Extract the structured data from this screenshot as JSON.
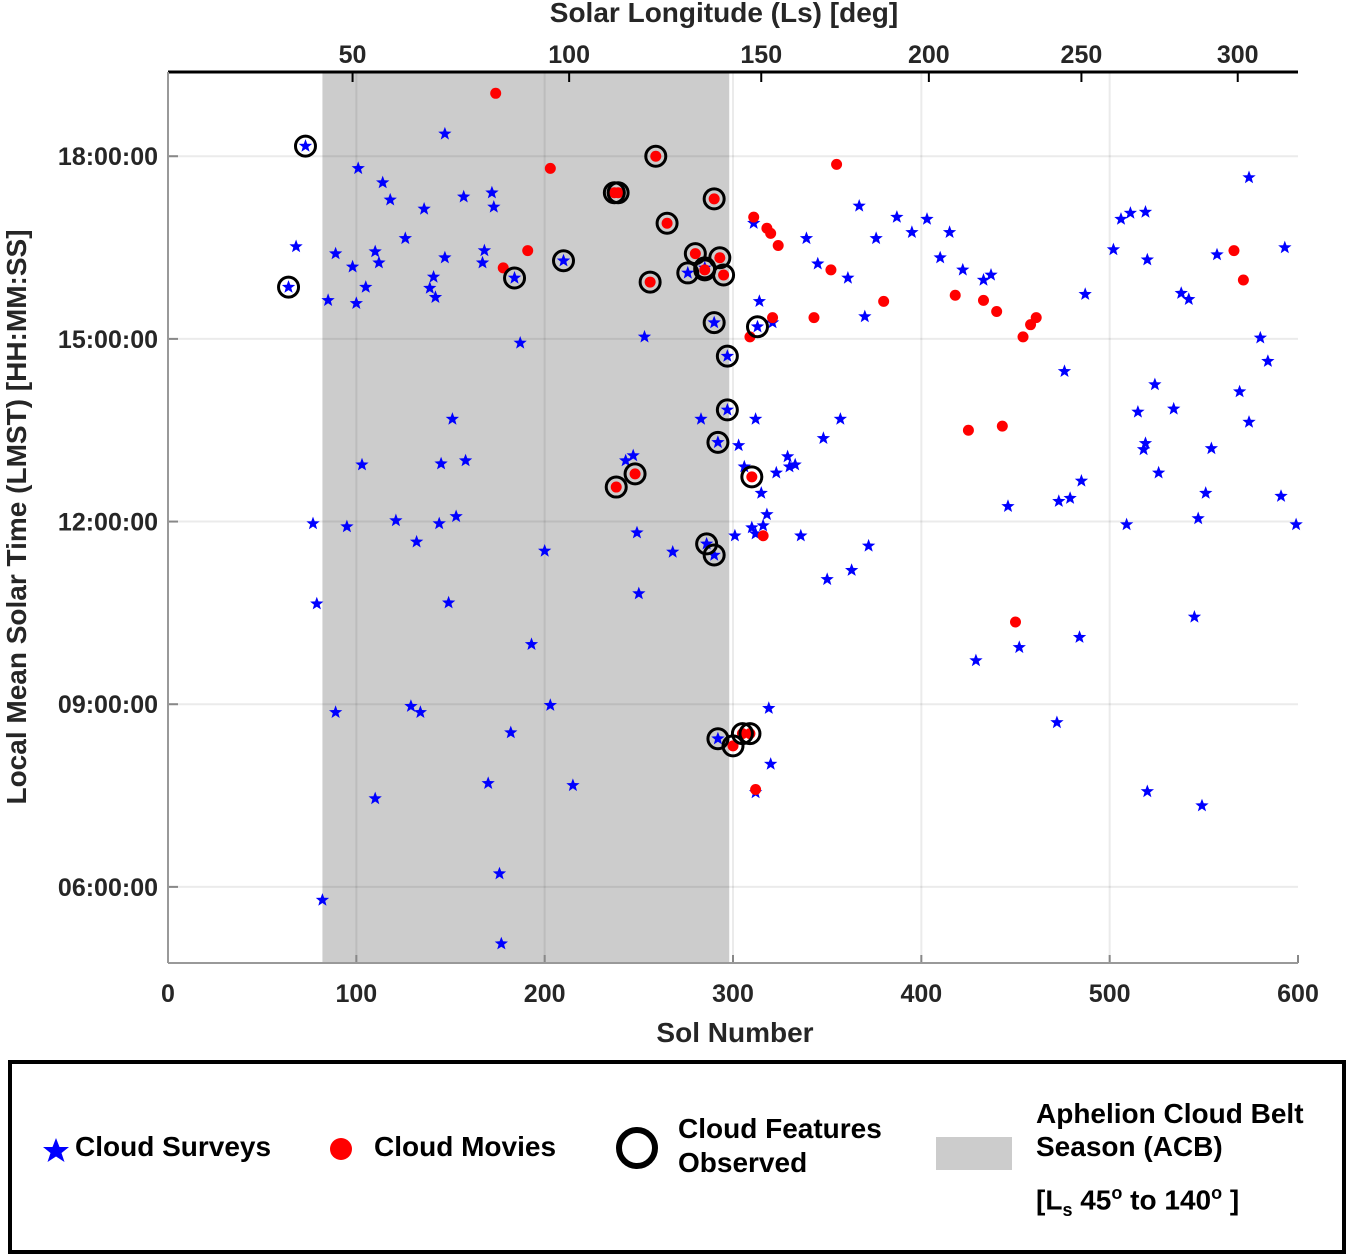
{
  "chart_data": {
    "type": "scatter",
    "xlabel": "Sol Number",
    "ylabel": "Local Mean Solar Time (LMST) [HH:MM:SS]",
    "top_xlabel": "Solar Longitude (Ls) [deg]",
    "xlim": [
      0,
      600
    ],
    "ylim": [
      "04:45",
      "19:23"
    ],
    "x_ticks": [
      "0",
      "100",
      "200",
      "300",
      "400",
      "500",
      "600"
    ],
    "y_ticks": [
      "06:00:00",
      "09:00:00",
      "12:00:00",
      "15:00:00",
      "18:00:00"
    ],
    "top_ticks": [
      {
        "label": "50",
        "sol": 98
      },
      {
        "label": "100",
        "sol": 213
      },
      {
        "label": "150",
        "sol": 315
      },
      {
        "label": "200",
        "sol": 404
      },
      {
        "label": "250",
        "sol": 485
      },
      {
        "label": "300",
        "sol": 568
      }
    ],
    "grid": true,
    "shaded_region": {
      "name": "Aphelion Cloud Belt Season (ACB)",
      "sol_range": [
        82,
        298
      ],
      "color": "#cccccc"
    },
    "colors": {
      "surveys": "#0000ff",
      "movies": "#ff0000",
      "features": "#000000"
    },
    "point_format": [
      "sol",
      "lmst",
      "cloud_feature_observed"
    ],
    "series": [
      {
        "name": "Cloud Surveys",
        "marker": "star",
        "points": [
          [
            73,
            "18:10",
            1
          ],
          [
            64,
            "15:51",
            1
          ],
          [
            68,
            "16:31",
            0
          ],
          [
            77,
            "11:58",
            0
          ],
          [
            79,
            "10:39",
            0
          ],
          [
            82,
            "05:47",
            0
          ],
          [
            85,
            "15:38",
            0
          ],
          [
            89,
            "16:24",
            0
          ],
          [
            89,
            "08:52",
            0
          ],
          [
            95,
            "11:55",
            0
          ],
          [
            98,
            "16:11",
            0
          ],
          [
            100,
            "15:35",
            0
          ],
          [
            101,
            "17:48",
            0
          ],
          [
            103,
            "12:56",
            0
          ],
          [
            105,
            "15:51",
            0
          ],
          [
            110,
            "07:27",
            0
          ],
          [
            110,
            "16:26",
            0
          ],
          [
            112,
            "16:15",
            0
          ],
          [
            114,
            "17:34",
            0
          ],
          [
            118,
            "17:17",
            0
          ],
          [
            121,
            "12:01",
            0
          ],
          [
            126,
            "16:39",
            0
          ],
          [
            129,
            "08:58",
            0
          ],
          [
            132,
            "11:40",
            0
          ],
          [
            134,
            "08:52",
            0
          ],
          [
            136,
            "17:08",
            0
          ],
          [
            139,
            "15:50",
            0
          ],
          [
            141,
            "16:01",
            0
          ],
          [
            142,
            "15:41",
            0
          ],
          [
            144,
            "11:58",
            0
          ],
          [
            145,
            "12:57",
            0
          ],
          [
            147,
            "16:20",
            0
          ],
          [
            147,
            "18:22",
            0
          ],
          [
            149,
            "10:40",
            0
          ],
          [
            151,
            "13:41",
            0
          ],
          [
            153,
            "12:05",
            0
          ],
          [
            157,
            "17:20",
            0
          ],
          [
            158,
            "13:00",
            0
          ],
          [
            168,
            "16:27",
            0
          ],
          [
            167,
            "16:15",
            0
          ],
          [
            170,
            "07:42",
            0
          ],
          [
            172,
            "17:24",
            0
          ],
          [
            173,
            "17:10",
            0
          ],
          [
            176,
            "06:13",
            0
          ],
          [
            177,
            "05:04",
            0
          ],
          [
            182,
            "08:32",
            0
          ],
          [
            184,
            "16:00",
            1
          ],
          [
            187,
            "14:56",
            0
          ],
          [
            193,
            "09:59",
            0
          ],
          [
            200,
            "11:31",
            0
          ],
          [
            203,
            "08:59",
            0
          ],
          [
            210,
            "16:17",
            1
          ],
          [
            215,
            "07:40",
            0
          ],
          [
            243,
            "13:00",
            0
          ],
          [
            247,
            "13:05",
            0
          ],
          [
            249,
            "11:49",
            0
          ],
          [
            250,
            "10:49",
            0
          ],
          [
            253,
            "15:02",
            0
          ],
          [
            268,
            "11:30",
            0
          ],
          [
            276,
            "16:05",
            1
          ],
          [
            283,
            "13:41",
            0
          ],
          [
            285,
            "16:10",
            1
          ],
          [
            286,
            "11:38",
            1
          ],
          [
            290,
            "11:27",
            1
          ],
          [
            290,
            "15:16",
            1
          ],
          [
            292,
            "13:18",
            1
          ],
          [
            292,
            "08:26",
            1
          ],
          [
            297,
            "14:43",
            1
          ],
          [
            297,
            "13:50",
            1
          ],
          [
            301,
            "11:46",
            0
          ],
          [
            303,
            "13:15",
            0
          ],
          [
            306,
            "12:54",
            0
          ],
          [
            311,
            "16:54",
            0
          ],
          [
            310,
            "11:54",
            0
          ],
          [
            312,
            "11:48",
            0
          ],
          [
            316,
            "11:56",
            0
          ],
          [
            312,
            "13:41",
            0
          ],
          [
            313,
            "15:12",
            1
          ],
          [
            314,
            "15:37",
            0
          ],
          [
            315,
            "12:28",
            0
          ],
          [
            318,
            "12:07",
            0
          ],
          [
            319,
            "08:56",
            0
          ],
          [
            320,
            "08:01",
            0
          ],
          [
            312,
            "07:33",
            0
          ],
          [
            323,
            "12:48",
            0
          ],
          [
            321,
            "15:16",
            0
          ],
          [
            329,
            "13:04",
            0
          ],
          [
            330,
            "12:54",
            0
          ],
          [
            333,
            "12:56",
            0
          ],
          [
            336,
            "11:46",
            0
          ],
          [
            339,
            "16:39",
            0
          ],
          [
            345,
            "16:14",
            0
          ],
          [
            348,
            "13:22",
            0
          ],
          [
            350,
            "11:03",
            0
          ],
          [
            357,
            "13:41",
            0
          ],
          [
            361,
            "16:00",
            0
          ],
          [
            363,
            "11:12",
            0
          ],
          [
            367,
            "17:11",
            0
          ],
          [
            370,
            "15:22",
            0
          ],
          [
            372,
            "11:36",
            0
          ],
          [
            376,
            "16:39",
            0
          ],
          [
            387,
            "17:00",
            0
          ],
          [
            395,
            "16:45",
            0
          ],
          [
            403,
            "16:58",
            0
          ],
          [
            410,
            "16:20",
            0
          ],
          [
            415,
            "16:45",
            0
          ],
          [
            422,
            "16:08",
            0
          ],
          [
            429,
            "09:43",
            0
          ],
          [
            433,
            "15:58",
            0
          ],
          [
            437,
            "16:03",
            0
          ],
          [
            446,
            "12:15",
            0
          ],
          [
            452,
            "09:56",
            0
          ],
          [
            473,
            "12:20",
            0
          ],
          [
            472,
            "08:42",
            0
          ],
          [
            476,
            "14:28",
            0
          ],
          [
            479,
            "12:23",
            0
          ],
          [
            484,
            "10:06",
            0
          ],
          [
            485,
            "12:40",
            0
          ],
          [
            487,
            "15:44",
            0
          ],
          [
            502,
            "16:28",
            0
          ],
          [
            506,
            "16:58",
            0
          ],
          [
            509,
            "11:57",
            0
          ],
          [
            511,
            "17:04",
            0
          ],
          [
            515,
            "13:48",
            0
          ],
          [
            519,
            "17:05",
            0
          ],
          [
            520,
            "16:18",
            0
          ],
          [
            519,
            "13:17",
            0
          ],
          [
            518,
            "13:11",
            0
          ],
          [
            520,
            "07:34",
            0
          ],
          [
            524,
            "14:15",
            0
          ],
          [
            526,
            "12:48",
            0
          ],
          [
            534,
            "13:51",
            0
          ],
          [
            538,
            "15:45",
            0
          ],
          [
            542,
            "15:39",
            0
          ],
          [
            545,
            "10:26",
            0
          ],
          [
            547,
            "12:03",
            0
          ],
          [
            551,
            "12:28",
            0
          ],
          [
            549,
            "07:20",
            0
          ],
          [
            554,
            "13:12",
            0
          ],
          [
            557,
            "16:23",
            0
          ],
          [
            569,
            "14:08",
            0
          ],
          [
            574,
            "17:39",
            0
          ],
          [
            574,
            "13:38",
            0
          ],
          [
            580,
            "15:01",
            0
          ],
          [
            584,
            "14:38",
            0
          ],
          [
            591,
            "12:25",
            0
          ],
          [
            593,
            "16:30",
            0
          ],
          [
            599,
            "11:57",
            0
          ]
        ]
      },
      {
        "name": "Cloud Movies",
        "marker": "dot",
        "points": [
          [
            174,
            "19:02",
            0
          ],
          [
            203,
            "17:48",
            0
          ],
          [
            191,
            "16:27",
            0
          ],
          [
            178,
            "16:10",
            0
          ],
          [
            237,
            "17:24",
            1
          ],
          [
            239,
            "17:24",
            1
          ],
          [
            259,
            "18:00",
            1
          ],
          [
            290,
            "17:18",
            1
          ],
          [
            265,
            "16:54",
            1
          ],
          [
            280,
            "16:24",
            1
          ],
          [
            293,
            "16:20",
            1
          ],
          [
            295,
            "16:03",
            1
          ],
          [
            256,
            "15:56",
            1
          ],
          [
            285,
            "16:08",
            1
          ],
          [
            238,
            "12:34",
            1
          ],
          [
            248,
            "12:47",
            1
          ],
          [
            311,
            "17:00",
            0
          ],
          [
            318,
            "16:49",
            0
          ],
          [
            320,
            "16:44",
            0
          ],
          [
            324,
            "16:32",
            0
          ],
          [
            352,
            "16:08",
            0
          ],
          [
            355,
            "17:52",
            0
          ],
          [
            321,
            "15:21",
            0
          ],
          [
            309,
            "15:02",
            0
          ],
          [
            343,
            "15:21",
            0
          ],
          [
            380,
            "15:37",
            0
          ],
          [
            418,
            "15:43",
            0
          ],
          [
            433,
            "15:38",
            0
          ],
          [
            440,
            "15:27",
            0
          ],
          [
            461,
            "15:21",
            0
          ],
          [
            458,
            "15:14",
            0
          ],
          [
            454,
            "15:02",
            0
          ],
          [
            425,
            "13:30",
            0
          ],
          [
            443,
            "13:34",
            0
          ],
          [
            566,
            "16:27",
            0
          ],
          [
            571,
            "15:58",
            0
          ],
          [
            310,
            "12:44",
            1
          ],
          [
            316,
            "11:46",
            0
          ],
          [
            450,
            "10:21",
            0
          ],
          [
            312,
            "07:36",
            0
          ],
          [
            300,
            "08:19",
            1
          ],
          [
            305,
            "08:31",
            1
          ],
          [
            309,
            "08:31",
            1
          ]
        ]
      }
    ]
  },
  "legend": {
    "surveys": "Cloud Surveys",
    "movies": "Cloud Movies",
    "features_line1": "Cloud Features",
    "features_line2": "Observed",
    "acb_line1": "Aphelion Cloud Belt",
    "acb_line2": "Season (ACB)",
    "acb_line3": {
      "open": "[L",
      "sub": "s",
      "from": " 45",
      "deg": "o",
      "mid": " to 140",
      "end": " ]"
    }
  }
}
